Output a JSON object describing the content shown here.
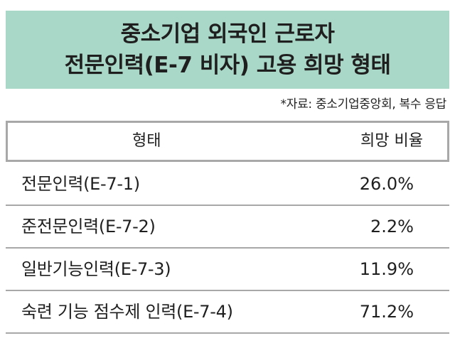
{
  "title": {
    "line1": "중소기업 외국인 근로자",
    "line2": "전문인력(E-7 비자) 고용 희망 형태"
  },
  "source": "*자료: 중소기업중앙회, 복수 응답",
  "colors": {
    "title_background": "#a9d7c8",
    "table_border": "#a8a8a8",
    "text": "#1f1f1f"
  },
  "chart_data": {
    "type": "table",
    "title": "중소기업 외국인 근로자 전문인력(E-7 비자) 고용 희망 형태",
    "columns": [
      "형태",
      "희망 비율"
    ],
    "rows": [
      {
        "label": "전문인력(E-7-1)",
        "value": "26.0%"
      },
      {
        "label": "준전문인력(E-7-2)",
        "value": "2.2%"
      },
      {
        "label": "일반기능인력(E-7-3)",
        "value": "11.9%"
      },
      {
        "label": "숙련 기능 점수제 인력(E-7-4)",
        "value": "71.2%"
      }
    ]
  }
}
